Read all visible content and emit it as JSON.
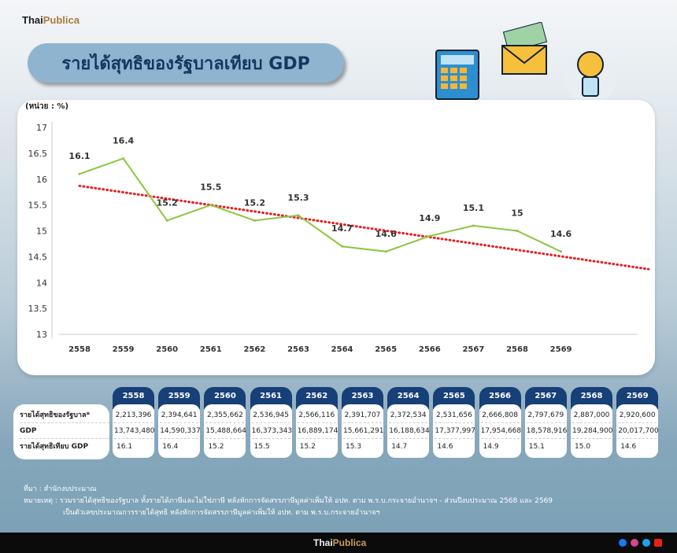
{
  "brand": {
    "thai": "Thai",
    "publica": "Publica"
  },
  "title": "รายได้สุทธิของรัฐบาลเทียบ GDP",
  "unit": "(หน่วย : %)",
  "chart_data": {
    "type": "line",
    "title": "รายได้สุทธิของรัฐบาลเทียบ GDP",
    "ylabel": "(หน่วย : %)",
    "categories": [
      "2558",
      "2559",
      "2560",
      "2561",
      "2562",
      "2563",
      "2564",
      "2565",
      "2566",
      "2567",
      "2568",
      "2569"
    ],
    "values": [
      16.1,
      16.4,
      15.2,
      15.5,
      15.2,
      15.3,
      14.7,
      14.6,
      14.9,
      15.1,
      15,
      14.6
    ],
    "data_labels": [
      "16.1",
      "16.4",
      "15.2",
      "15.5",
      "15.2",
      "15.3",
      "14.7",
      "14.6",
      "14.9",
      "15.1",
      "15",
      "14.6"
    ],
    "yticks": [
      "17",
      "16.5",
      "16",
      "15.5",
      "15",
      "14.5",
      "14",
      "13.5",
      "13"
    ],
    "ylim": [
      13,
      17
    ],
    "grid": false,
    "line_color": "#8cc63f",
    "trendline": {
      "style": "dotted",
      "color": "#e02020",
      "start": {
        "x": "2558",
        "y": 15.87
      },
      "end": {
        "x": "2571",
        "y": 14.26
      }
    }
  },
  "table": {
    "row_labels": [
      "รายได้สุทธิของรัฐบาล*",
      "GDP",
      "รายได้สุทธิเทียบ GDP"
    ],
    "columns": [
      {
        "year": "2558",
        "revenue": "2,213,396",
        "gdp": "13,743,480",
        "ratio": "16.1"
      },
      {
        "year": "2559",
        "revenue": "2,394,641",
        "gdp": "14,590,337",
        "ratio": "16.4"
      },
      {
        "year": "2560",
        "revenue": "2,355,662",
        "gdp": "15,488,664",
        "ratio": "15.2"
      },
      {
        "year": "2561",
        "revenue": "2,536,945",
        "gdp": "16,373,343",
        "ratio": "15.5"
      },
      {
        "year": "2562",
        "revenue": "2,566,116",
        "gdp": "16,889,174",
        "ratio": "15.2"
      },
      {
        "year": "2563",
        "revenue": "2,391,707",
        "gdp": "15,661,291",
        "ratio": "15.3"
      },
      {
        "year": "2564",
        "revenue": "2,372,534",
        "gdp": "16,188,634",
        "ratio": "14.7"
      },
      {
        "year": "2565",
        "revenue": "2,531,656",
        "gdp": "17,377,997",
        "ratio": "14.6"
      },
      {
        "year": "2566",
        "revenue": "2,666,808",
        "gdp": "17,954,668",
        "ratio": "14.9"
      },
      {
        "year": "2567",
        "revenue": "2,797,679",
        "gdp": "18,578,916",
        "ratio": "15.1"
      },
      {
        "year": "2568",
        "revenue": "2,887,000",
        "gdp": "19,284,900",
        "ratio": "15.0"
      },
      {
        "year": "2569",
        "revenue": "2,920,600",
        "gdp": "20,017,700",
        "ratio": "14.6"
      }
    ]
  },
  "notes": {
    "source": "ที่มา : สำนักงบประมาณ",
    "remark1": "หมายเหตุ : รวมรายได้สุทธิของรัฐบาล ทั้งรายได้ภาษีและไม่ใช่ภาษี หลังหักการจัดสรรภาษีมูลค่าเพิ่มให้ อปท. ตาม พ.ร.บ.กระจายอำนาจฯ - ส่วนปีงบประมาณ 2568 และ 2569",
    "remark2": "เป็นตัวเลขประมาณการรายได้สุทธิ หลังหักการจัดสรรภาษีมูลค่าเพิ่มให้ อปท. ตาม พ.ร.บ.กระจายอำนาจฯ"
  },
  "social_icons": [
    "facebook-icon",
    "instagram-icon",
    "twitter-icon",
    "youtube-icon"
  ]
}
